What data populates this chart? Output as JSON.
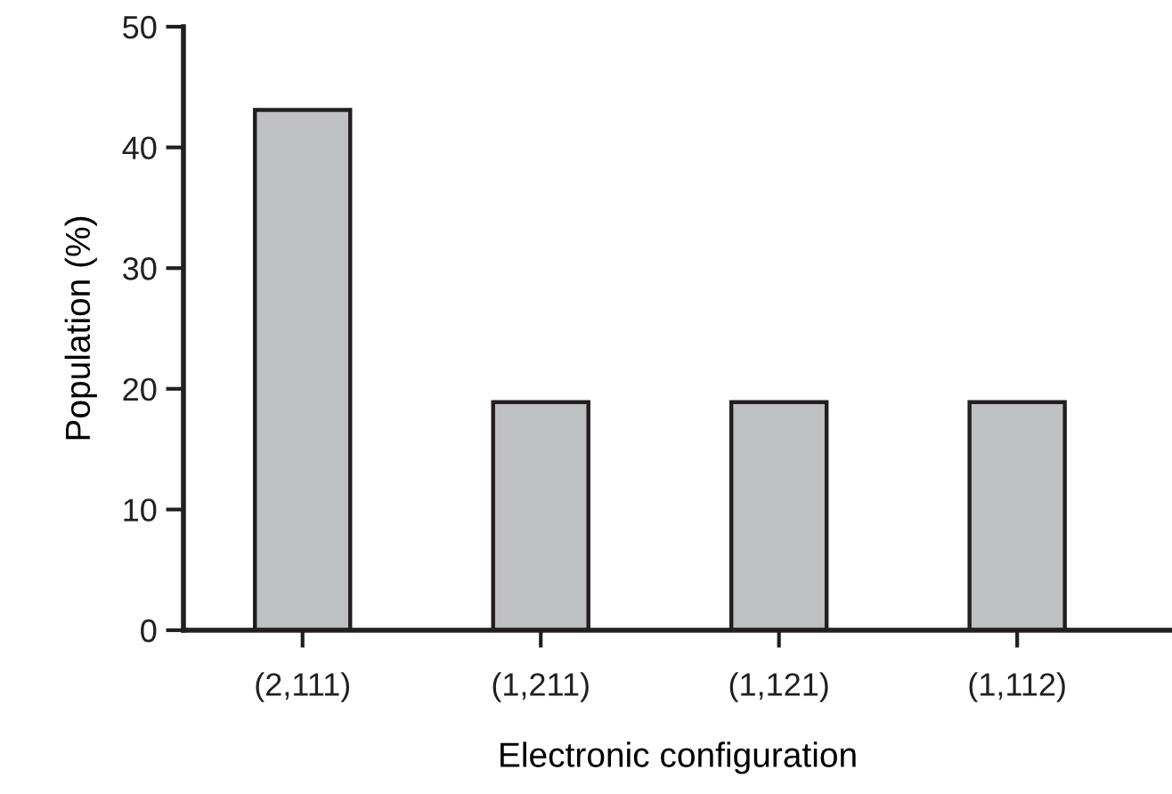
{
  "chart_data": {
    "type": "bar",
    "xlabel": "Electronic configuration",
    "ylabel": "Population (%)",
    "categories": [
      "(2,111)",
      "(1,211)",
      "(1,121)",
      "(1,112)"
    ],
    "values": [
      43.1,
      18.9,
      18.9,
      18.9
    ],
    "color": "#bfc0c2",
    "ylim": [
      0,
      50
    ],
    "yticks": [
      0,
      10,
      20,
      30,
      40,
      50
    ],
    "grid": false
  }
}
